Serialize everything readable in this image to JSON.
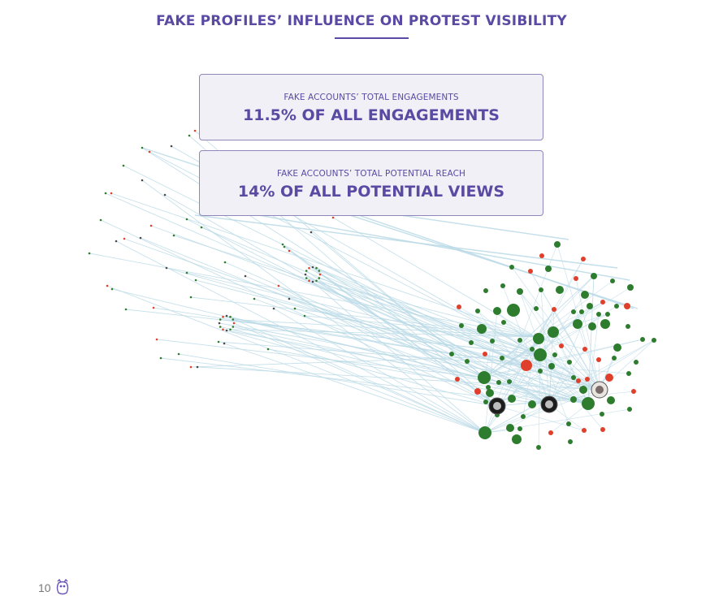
{
  "page": {
    "title": "FAKE PROFILES’ INFLUENCE ON PROTEST VISIBILITY",
    "page_number": "10"
  },
  "stats": [
    {
      "label": "FAKE ACCOUNTS’ TOTAL ENGAGEMENTS",
      "value": "11.5% OF ALL ENGAGEMENTS"
    },
    {
      "label": "FAKE ACCOUNTS’ TOTAL POTENTIAL REACH",
      "value": "14% OF ALL POTENTIAL VIEWS"
    }
  ],
  "colors": {
    "accent": "#5a4aa3",
    "node_green": "#2e7d2e",
    "node_red": "#e0402b",
    "edge": "#b9d9e6"
  },
  "icons": [
    "owl-logo-icon"
  ]
}
